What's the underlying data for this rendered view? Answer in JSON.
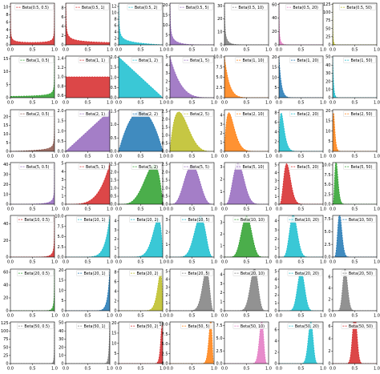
{
  "chart_data": {
    "type": "area",
    "title": "",
    "layout": {
      "rows": 7,
      "cols": 7
    },
    "row_params": [
      0.5,
      1,
      2,
      5,
      10,
      20,
      50
    ],
    "col_params": [
      0.5,
      1,
      2,
      5,
      10,
      20,
      50
    ],
    "series_style": "filled density with dashed outline, one per panel",
    "palette": [
      "#d62728",
      "#1f77b4",
      "#17becf",
      "#9467bd",
      "#7f7f7f",
      "#e377c2",
      "#bcbd22",
      "#2ca02c",
      "#ff7f0e",
      "#8c564b"
    ],
    "xlim": [
      0,
      1
    ],
    "x_tick_labels": [
      "0.0",
      "0.5",
      "1.0"
    ],
    "panels": [
      [
        {
          "legend": "Beta(0.5, 0.5)",
          "color": "#d62728",
          "y_tick_values": [
            0,
            2,
            4,
            6,
            8,
            10
          ],
          "ylim": [
            0,
            11
          ]
        },
        {
          "legend": "Beta(0.5, 1)",
          "color": "#d62728",
          "y_tick_values": [
            0,
            2,
            4,
            6,
            8
          ],
          "ylim": [
            0,
            9
          ]
        },
        {
          "legend": "Beta(0.5, 2)",
          "color": "#17becf",
          "y_tick_values": [
            0,
            2,
            4,
            6,
            8,
            10,
            12
          ],
          "ylim": [
            0,
            13
          ]
        },
        {
          "legend": "Beta(0.5, 5)",
          "color": "#9467bd",
          "y_tick_values": [
            0,
            5,
            10,
            15,
            20
          ],
          "ylim": [
            0,
            21
          ]
        },
        {
          "legend": "Beta(0.5, 10)",
          "color": "#7f7f7f",
          "y_tick_values": [
            0,
            10,
            20,
            30
          ],
          "ylim": [
            0,
            32
          ]
        },
        {
          "legend": "Beta(0.5, 20)",
          "color": "#e377c2",
          "y_tick_values": [
            0,
            20,
            40,
            60
          ],
          "ylim": [
            0,
            62
          ]
        },
        {
          "legend": "Beta(0.5, 50)",
          "color": "#bcbd22",
          "y_tick_values": [
            0,
            25,
            50,
            75,
            100,
            125
          ],
          "ylim": [
            0,
            128
          ]
        }
      ],
      [
        {
          "legend": "Beta(1, 0.5)",
          "color": "#2ca02c",
          "y_tick_values": [
            0,
            5,
            10,
            15
          ],
          "ylim": [
            0,
            16
          ]
        },
        {
          "legend": "Beta(1, 1)",
          "color": "#d62728",
          "y_tick_values": [
            0.6,
            0.8,
            1.0,
            1.2,
            1.4
          ],
          "ylim": [
            0.55,
            1.45
          ]
        },
        {
          "legend": "Beta(1, 2)",
          "color": "#17becf",
          "y_tick_values": [
            0.0,
            0.5,
            1.0,
            1.5,
            2.0
          ],
          "ylim": [
            0,
            2.05
          ]
        },
        {
          "legend": "Beta(1, 5)",
          "color": "#9467bd",
          "y_tick_values": [
            0,
            1,
            2,
            3,
            4,
            5
          ],
          "ylim": [
            0,
            5.1
          ]
        },
        {
          "legend": "Beta(1, 10)",
          "color": "#ff7f0e",
          "y_tick_values": [
            0.0,
            2.5,
            5.0,
            7.5,
            10.0
          ],
          "ylim": [
            0,
            10.2
          ]
        },
        {
          "legend": "Beta(1, 20)",
          "color": "#1f77b4",
          "y_tick_values": [
            0,
            5,
            10,
            15,
            20
          ],
          "ylim": [
            0,
            20.5
          ]
        },
        {
          "legend": "Beta(1, 50)",
          "color": "#17becf",
          "y_tick_values": [
            0,
            10,
            20,
            30,
            40,
            50
          ],
          "ylim": [
            0,
            51
          ]
        }
      ],
      [
        {
          "legend": "Beta(2, 0.5)",
          "color": "#8c564b",
          "y_tick_values": [
            0,
            5,
            10,
            15,
            20
          ],
          "ylim": [
            0,
            24
          ]
        },
        {
          "legend": "Beta(2, 1)",
          "color": "#9467bd",
          "y_tick_values": [
            0.0,
            0.5,
            1.0,
            1.5,
            2.0
          ],
          "ylim": [
            0,
            2.05
          ]
        },
        {
          "legend": "Beta(2, 2)",
          "color": "#1f77b4",
          "y_tick_values": [
            0.0,
            0.5,
            1.0,
            1.5
          ],
          "ylim": [
            0,
            1.55
          ]
        },
        {
          "legend": "Beta(2, 5)",
          "color": "#bcbd22",
          "y_tick_values": [
            0.0,
            0.5,
            1.0,
            1.5,
            2.0,
            2.5
          ],
          "ylim": [
            0,
            2.6
          ]
        },
        {
          "legend": "Beta(2, 10)",
          "color": "#ff7f0e",
          "y_tick_values": [
            0,
            1,
            2,
            3,
            4
          ],
          "ylim": [
            0,
            4.6
          ]
        },
        {
          "legend": "Beta(2, 20)",
          "color": "#17becf",
          "y_tick_values": [
            0,
            2,
            4,
            6,
            8
          ],
          "ylim": [
            0,
            8.6
          ]
        },
        {
          "legend": "Beta(2, 50)",
          "color": "#ff7f0e",
          "y_tick_values": [
            0,
            5,
            10,
            15,
            20
          ],
          "ylim": [
            0,
            20.5
          ]
        }
      ],
      [
        {
          "legend": "Beta(5, 0.5)",
          "color": "#9467bd",
          "y_tick_values": [
            0,
            10,
            20,
            30,
            40
          ],
          "ylim": [
            0,
            42
          ]
        },
        {
          "legend": "Beta(5, 1)",
          "color": "#d62728",
          "y_tick_values": [
            0,
            1,
            2,
            3,
            4,
            5
          ],
          "ylim": [
            0,
            5.1
          ]
        },
        {
          "legend": "Beta(5, 2)",
          "color": "#2ca02c",
          "y_tick_values": [
            0.0,
            0.5,
            1.0,
            1.5,
            2.0,
            2.5
          ],
          "ylim": [
            0,
            2.6
          ]
        },
        {
          "legend": "Beta(5, 5)",
          "color": "#9467bd",
          "y_tick_values": [
            0.0,
            0.5,
            1.0,
            1.5,
            2.0,
            2.5
          ],
          "ylim": [
            0,
            2.6
          ]
        },
        {
          "legend": "Beta(5, 10)",
          "color": "#9467bd",
          "y_tick_values": [
            0,
            1,
            2,
            3
          ],
          "ylim": [
            0,
            3.35
          ]
        },
        {
          "legend": "Beta(5, 20)",
          "color": "#d62728",
          "y_tick_values": [
            0,
            1,
            2,
            3,
            4,
            5
          ],
          "ylim": [
            0,
            5.3
          ]
        },
        {
          "legend": "Beta(5, 50)",
          "color": "#2ca02c",
          "y_tick_values": [
            0.0,
            2.5,
            5.0,
            7.5,
            10.0
          ],
          "ylim": [
            0,
            10.6
          ]
        }
      ],
      [
        {
          "legend": "Beta(10, 0.5)",
          "color": "#d62728",
          "y_tick_values": [
            0,
            20,
            40
          ],
          "ylim": [
            0,
            50
          ]
        },
        {
          "legend": "Beta(10, 1)",
          "color": "#17becf",
          "y_tick_values": [
            0.0,
            2.5,
            5.0,
            7.5,
            10.0
          ],
          "ylim": [
            0,
            10.2
          ]
        },
        {
          "legend": "Beta(10, 2)",
          "color": "#17becf",
          "y_tick_values": [
            0,
            1,
            2,
            3,
            4
          ],
          "ylim": [
            0,
            4.6
          ]
        },
        {
          "legend": "Beta(10, 5)",
          "color": "#17becf",
          "y_tick_values": [
            0,
            1,
            2,
            3
          ],
          "ylim": [
            0,
            3.35
          ]
        },
        {
          "legend": "Beta(10, 10)",
          "color": "#2ca02c",
          "y_tick_values": [
            0,
            1,
            2,
            3
          ],
          "ylim": [
            0,
            3.6
          ]
        },
        {
          "legend": "Beta(10, 20)",
          "color": "#17becf",
          "y_tick_values": [
            0,
            1,
            2,
            3,
            4
          ],
          "ylim": [
            0,
            4.6
          ]
        },
        {
          "legend": "Beta(10, 50)",
          "color": "#1f77b4",
          "y_tick_values": [
            0.0,
            2.5,
            5.0,
            7.5
          ],
          "ylim": [
            0,
            8.2
          ]
        }
      ],
      [
        {
          "legend": "Beta(20, 0.5)",
          "color": "#2ca02c",
          "y_tick_values": [
            0,
            20,
            40,
            60
          ],
          "ylim": [
            0,
            65
          ]
        },
        {
          "legend": "Beta(20, 1)",
          "color": "#1f77b4",
          "y_tick_values": [
            0,
            5,
            10,
            15,
            20
          ],
          "ylim": [
            0,
            20.5
          ]
        },
        {
          "legend": "Beta(20, 2)",
          "color": "#bcbd22",
          "y_tick_values": [
            0,
            2,
            4,
            6,
            8
          ],
          "ylim": [
            0,
            8.6
          ]
        },
        {
          "legend": "Beta(20, 5)",
          "color": "#7f7f7f",
          "y_tick_values": [
            0,
            1,
            2,
            3,
            4,
            5
          ],
          "ylim": [
            0,
            5.3
          ]
        },
        {
          "legend": "Beta(20, 10)",
          "color": "#7f7f7f",
          "y_tick_values": [
            0,
            1,
            2,
            3,
            4
          ],
          "ylim": [
            0,
            4.6
          ]
        },
        {
          "legend": "Beta(20, 20)",
          "color": "#17becf",
          "y_tick_values": [
            0,
            1,
            2,
            3,
            4,
            5
          ],
          "ylim": [
            0,
            5.3
          ]
        },
        {
          "legend": "Beta(20, 50)",
          "color": "#7f7f7f",
          "y_tick_values": [
            0,
            2,
            4,
            6
          ],
          "ylim": [
            0,
            7.4
          ]
        }
      ],
      [
        {
          "legend": "Beta(50, 0.5)",
          "color": "#7f7f7f",
          "y_tick_values": [
            0,
            25,
            50,
            75,
            100,
            125
          ],
          "ylim": [
            0,
            128
          ]
        },
        {
          "legend": "Beta(50, 1)",
          "color": "#7f7f7f",
          "y_tick_values": [
            0,
            10,
            20,
            30,
            40,
            50
          ],
          "ylim": [
            0,
            51
          ]
        },
        {
          "legend": "Beta(50, 2)",
          "color": "#d62728",
          "y_tick_values": [
            0,
            5,
            10,
            15,
            20
          ],
          "ylim": [
            0,
            20.5
          ]
        },
        {
          "legend": "Beta(50, 5)",
          "color": "#ff7f0e",
          "y_tick_values": [
            0.0,
            2.5,
            5.0,
            7.5,
            10.0
          ],
          "ylim": [
            0,
            10.6
          ]
        },
        {
          "legend": "Beta(50, 10)",
          "color": "#e377c2",
          "y_tick_values": [
            0.0,
            2.5,
            5.0,
            7.5
          ],
          "ylim": [
            0,
            8.2
          ]
        },
        {
          "legend": "Beta(50, 20)",
          "color": "#17becf",
          "y_tick_values": [
            0,
            2,
            4,
            6
          ],
          "ylim": [
            0,
            7.4
          ]
        },
        {
          "legend": "Beta(50, 50)",
          "color": "#d62728",
          "y_tick_values": [
            0,
            2,
            4,
            6
          ],
          "ylim": [
            0,
            6.7
          ]
        }
      ]
    ]
  }
}
